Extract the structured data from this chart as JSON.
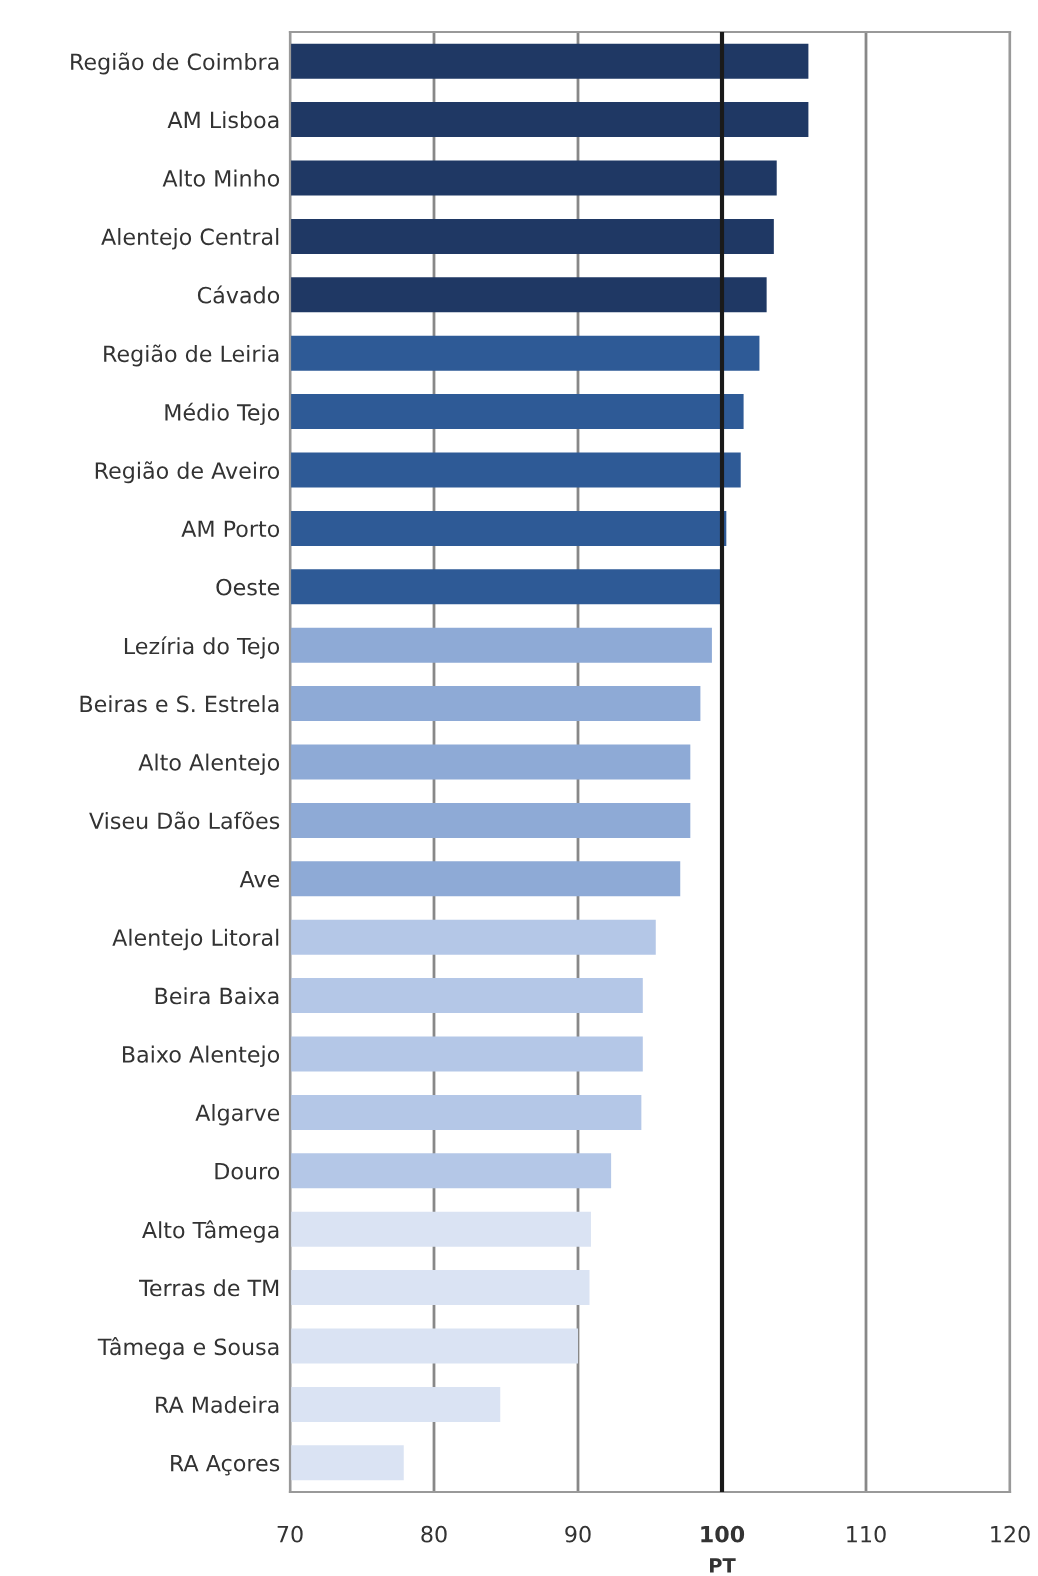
{
  "chart_data": {
    "type": "bar",
    "orientation": "horizontal",
    "xlabel": "PT",
    "categories": [
      "Região de Coimbra",
      "AM Lisboa",
      "Alto Minho",
      "Alentejo Central",
      "Cávado",
      "Região de Leiria",
      "Médio Tejo",
      "Região de Aveiro",
      "AM Porto",
      "Oeste",
      "Lezíria do Tejo",
      "Beiras e S. Estrela",
      "Alto Alentejo",
      "Viseu Dão Lafões",
      "Ave",
      "Alentejo Litoral",
      "Beira Baixa",
      "Baixo Alentejo",
      "Algarve",
      "Douro",
      "Alto Tâmega",
      "Terras de TM",
      "Tâmega e Sousa",
      "RA Madeira",
      "RA Açores"
    ],
    "values": [
      106.0,
      106.0,
      103.8,
      103.6,
      103.1,
      102.6,
      101.5,
      101.3,
      100.3,
      100.0,
      99.3,
      98.5,
      97.8,
      97.8,
      97.1,
      95.4,
      94.5,
      94.5,
      94.4,
      92.3,
      90.9,
      90.8,
      90.0,
      84.6,
      77.9
    ],
    "colors": [
      "#1f3864",
      "#1f3864",
      "#1f3864",
      "#1f3864",
      "#1f3864",
      "#2e5a96",
      "#2e5a96",
      "#2e5a96",
      "#2e5a96",
      "#2e5a96",
      "#8eaad6",
      "#8eaad6",
      "#8eaad6",
      "#8eaad6",
      "#8eaad6",
      "#b4c7e7",
      "#b4c7e7",
      "#b4c7e7",
      "#b4c7e7",
      "#b4c7e7",
      "#dae3f3",
      "#dae3f3",
      "#dae3f3",
      "#dae3f3",
      "#dae3f3"
    ],
    "xlim": [
      70,
      120
    ],
    "xticks": [
      70,
      80,
      90,
      100,
      110,
      120
    ],
    "grid": "x",
    "ref_lines": [
      {
        "axis": "x",
        "value": 100,
        "color": "#1a1a1a"
      }
    ]
  }
}
